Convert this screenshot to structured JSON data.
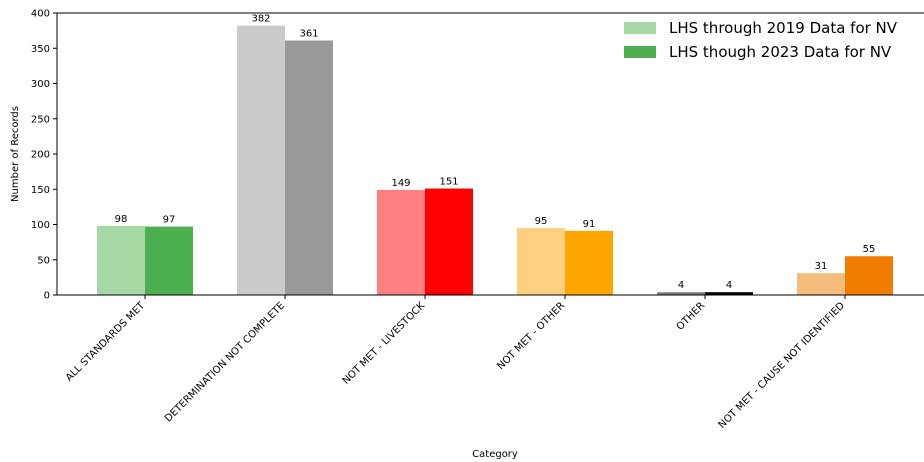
{
  "chart_data": {
    "type": "bar",
    "categories": [
      "ALL STANDARDS MET",
      "DETERMINATION NOT COMPLETE",
      "NOT MET - LIVESTOCK",
      "NOT MET - OTHER",
      "OTHER",
      "NOT MET - CAUSE NOT IDENTIFIED"
    ],
    "series": [
      {
        "name": "LHS through 2019 Data for NV",
        "values": [
          98,
          382,
          149,
          95,
          4,
          31
        ],
        "colors": [
          "#a6d8a6",
          "#cbcbcb",
          "#ff8080",
          "#fdd080",
          "#7f7f7f",
          "#f5bc7e"
        ]
      },
      {
        "name": "LHS though 2023 Data for NV",
        "values": [
          97,
          361,
          151,
          91,
          4,
          55
        ],
        "colors": [
          "#4caf50",
          "#999999",
          "#ff0000",
          "#ffa500",
          "#000000",
          "#f07c00"
        ]
      }
    ],
    "legend_colors": [
      "#a6d8a6",
      "#4caf50"
    ],
    "xlabel": "Category",
    "ylabel": "Number of Records",
    "ylim": [
      0,
      400
    ],
    "yticks": [
      0,
      50,
      100,
      150,
      200,
      250,
      300,
      350,
      400
    ],
    "grid": false,
    "legend_position": "top-right"
  }
}
